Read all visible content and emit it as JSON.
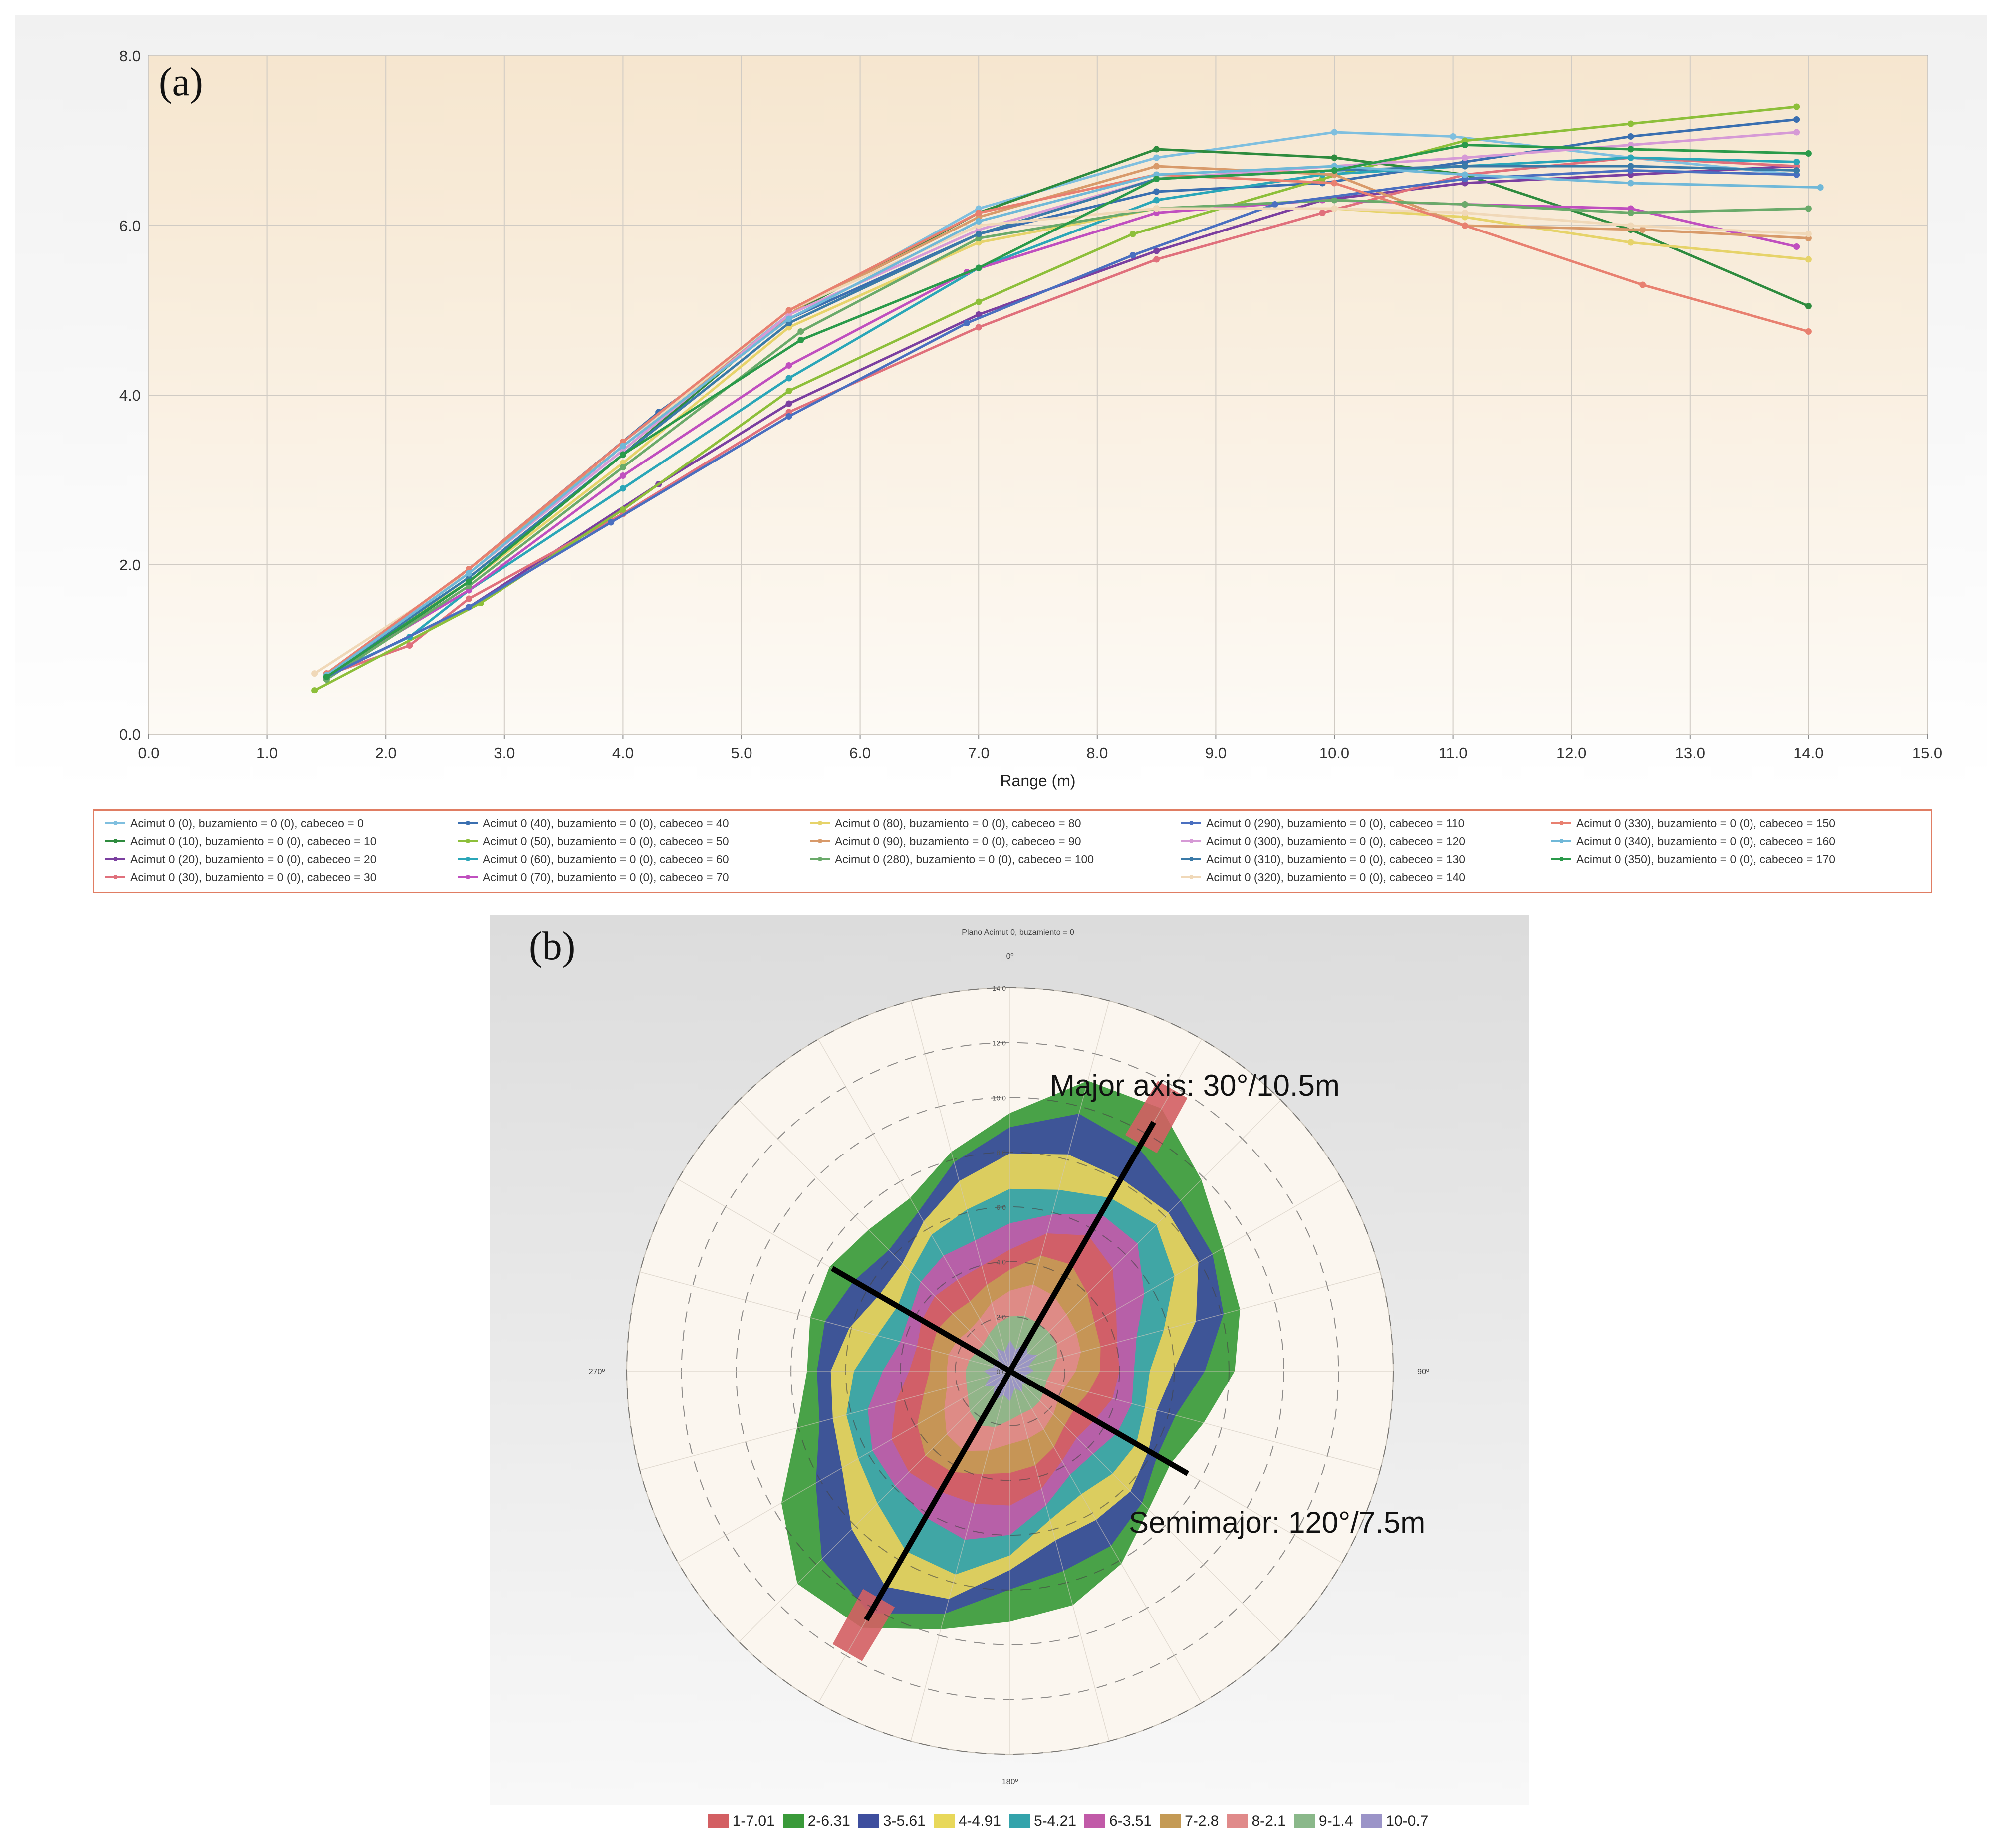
{
  "panel_a": {
    "label": "(a)",
    "chart_data": {
      "type": "line",
      "xlabel": "Range (m)",
      "ylabel": "",
      "xlim": [
        0,
        15
      ],
      "ylim": [
        0,
        8
      ],
      "x_ticks": [
        "0.0",
        "1.0",
        "2.0",
        "3.0",
        "4.0",
        "5.0",
        "6.0",
        "7.0",
        "8.0",
        "9.0",
        "10.0",
        "11.0",
        "12.0",
        "13.0",
        "14.0",
        "15.0"
      ],
      "y_ticks": [
        "0.0",
        "2.0",
        "4.0",
        "6.0",
        "8.0"
      ],
      "grid": true,
      "legend_position": "bottom",
      "series": [
        {
          "name": "Acimut 0 (0), buzamiento = 0 (0), cabeceo = 0",
          "color": "#7fbfdf",
          "x": [
            1.5,
            2.7,
            4.0,
            5.4,
            7.0,
            8.5,
            10.0,
            11.0,
            12.5,
            13.9
          ],
          "y": [
            0.72,
            1.95,
            3.45,
            4.95,
            6.2,
            6.8,
            7.1,
            7.05,
            6.8,
            6.6
          ]
        },
        {
          "name": "Acimut 0 (10), buzamiento = 0 (0), cabeceo = 10",
          "color": "#2e8b3e",
          "x": [
            1.5,
            2.7,
            4.0,
            5.4,
            7.0,
            8.5,
            10.0,
            11.1,
            12.5,
            14.0
          ],
          "y": [
            0.65,
            1.8,
            3.3,
            4.95,
            6.15,
            6.9,
            6.8,
            6.6,
            5.95,
            5.05
          ]
        },
        {
          "name": "Acimut 0 (20), buzamiento = 0 (0), cabeceo = 20",
          "color": "#7b3fa0",
          "x": [
            1.5,
            2.7,
            4.3,
            5.4,
            7.0,
            8.5,
            9.9,
            11.1,
            12.5,
            13.9
          ],
          "y": [
            0.68,
            1.5,
            2.95,
            3.9,
            4.95,
            5.7,
            6.3,
            6.5,
            6.6,
            6.7
          ]
        },
        {
          "name": "Acimut 0 (30), buzamiento = 0 (0), cabeceo = 30",
          "color": "#e0707c",
          "x": [
            1.5,
            2.2,
            2.7,
            4.0,
            5.4,
            7.0,
            8.5,
            9.9,
            11.1,
            12.5,
            13.9
          ],
          "y": [
            0.7,
            1.05,
            1.6,
            2.6,
            3.8,
            4.8,
            5.6,
            6.15,
            6.6,
            6.8,
            6.7
          ]
        },
        {
          "name": "Acimut 0 (40), buzamiento = 0 (0), cabeceo = 40",
          "color": "#3a6fb0",
          "x": [
            1.5,
            2.7,
            4.3,
            5.4,
            7.0,
            8.5,
            9.9,
            11.1,
            12.5,
            13.9
          ],
          "y": [
            0.68,
            1.95,
            3.8,
            4.9,
            5.9,
            6.4,
            6.5,
            6.75,
            7.05,
            7.25
          ]
        },
        {
          "name": "Acimut 0 (50), buzamiento = 0 (0), cabeceo = 50",
          "color": "#8dbf3a",
          "x": [
            1.4,
            2.8,
            4.0,
            5.4,
            7.0,
            8.3,
            9.9,
            11.1,
            12.5,
            13.9
          ],
          "y": [
            0.52,
            1.55,
            2.65,
            4.05,
            5.1,
            5.9,
            6.55,
            7.0,
            7.2,
            7.4
          ]
        },
        {
          "name": "Acimut 0 (60), buzamiento = 0 (0), cabeceo = 60",
          "color": "#2aa6b8",
          "x": [
            1.5,
            2.2,
            2.7,
            4.0,
            5.4,
            7.0,
            8.5,
            9.9,
            11.1,
            12.5,
            13.9
          ],
          "y": [
            0.7,
            1.15,
            1.7,
            2.9,
            4.2,
            5.5,
            6.3,
            6.6,
            6.7,
            6.8,
            6.75
          ]
        },
        {
          "name": "Acimut 0 (70), buzamiento = 0 (0), cabeceo = 70",
          "color": "#c04fbf",
          "x": [
            1.5,
            2.7,
            4.0,
            5.4,
            6.9,
            8.5,
            9.9,
            11.1,
            12.5,
            13.9
          ],
          "y": [
            0.7,
            1.7,
            3.05,
            4.35,
            5.45,
            6.15,
            6.3,
            6.25,
            6.2,
            5.75
          ]
        },
        {
          "name": "Acimut 0 (80), buzamiento = 0 (0), cabeceo = 80",
          "color": "#e6d36a",
          "x": [
            1.5,
            2.7,
            4.0,
            5.4,
            7.0,
            8.5,
            10.0,
            11.1,
            12.5,
            14.0
          ],
          "y": [
            0.72,
            1.8,
            3.2,
            4.8,
            5.8,
            6.2,
            6.2,
            6.1,
            5.8,
            5.6
          ]
        },
        {
          "name": "Acimut 0 (90), buzamiento = 0 (0), cabeceo = 90",
          "color": "#d89a6a",
          "x": [
            1.5,
            2.7,
            4.0,
            5.5,
            7.0,
            8.5,
            10.0,
            11.1,
            12.6,
            14.0
          ],
          "y": [
            0.7,
            1.95,
            3.4,
            5.05,
            6.1,
            6.7,
            6.6,
            6.0,
            5.95,
            5.85
          ]
        },
        {
          "name": "Acimut 0 (280), buzamiento = 0 (0), cabeceo = 100",
          "color": "#6aaa6a",
          "x": [
            1.5,
            2.7,
            4.0,
            5.5,
            7.0,
            8.5,
            10.0,
            11.1,
            12.5,
            14.0
          ],
          "y": [
            0.65,
            1.75,
            3.15,
            4.75,
            5.85,
            6.2,
            6.3,
            6.25,
            6.15,
            6.2
          ]
        },
        {
          "name": "Acimut 0 (290), buzamiento = 0 (0), cabeceo = 110",
          "color": "#4a6fc0",
          "x": [
            1.5,
            2.7,
            3.9,
            5.4,
            6.9,
            8.3,
            9.5,
            11.1,
            12.5,
            13.9
          ],
          "y": [
            0.68,
            1.5,
            2.5,
            3.75,
            4.85,
            5.65,
            6.25,
            6.55,
            6.65,
            6.6
          ]
        },
        {
          "name": "Acimut 0 (300), buzamiento = 0 (0), cabeceo = 120",
          "color": "#d69ad6",
          "x": [
            1.5,
            2.7,
            4.0,
            5.4,
            7.0,
            8.5,
            10.0,
            11.1,
            12.5,
            13.9
          ],
          "y": [
            0.72,
            1.9,
            3.35,
            4.95,
            5.95,
            6.55,
            6.7,
            6.8,
            6.95,
            7.1
          ]
        },
        {
          "name": "Acimut 0 (310), buzamiento = 0 (0), cabeceo = 130",
          "color": "#3a7aa8",
          "x": [
            1.5,
            2.7,
            4.0,
            5.4,
            7.0,
            8.5,
            10.0,
            11.1,
            12.5,
            13.9
          ],
          "y": [
            0.7,
            1.85,
            3.3,
            4.85,
            5.9,
            6.55,
            6.65,
            6.7,
            6.7,
            6.65
          ]
        },
        {
          "name": "Acimut 0 (320), buzamiento = 0 (0), cabeceo = 140",
          "color": "#f0d8b8",
          "x": [
            1.4,
            2.7,
            4.0,
            5.4,
            7.0,
            8.5,
            10.0,
            11.1,
            12.5,
            14.0
          ],
          "y": [
            0.72,
            1.9,
            3.4,
            5.0,
            6.0,
            6.2,
            6.2,
            6.15,
            6.0,
            5.9
          ]
        },
        {
          "name": "Acimut 0 (330), buzamiento = 0 (0), cabeceo = 150",
          "color": "#e88070",
          "x": [
            1.5,
            2.7,
            4.0,
            5.4,
            7.0,
            8.5,
            10.0,
            11.1,
            12.6,
            14.0
          ],
          "y": [
            0.72,
            1.95,
            3.45,
            5.0,
            6.15,
            6.6,
            6.5,
            6.0,
            5.3,
            4.75
          ]
        },
        {
          "name": "Acimut 0 (340), buzamiento = 0 (0), cabeceo = 160",
          "color": "#70b8d8",
          "x": [
            1.5,
            2.7,
            4.0,
            5.4,
            7.0,
            8.5,
            10.0,
            11.1,
            12.5,
            14.1
          ],
          "y": [
            0.7,
            1.9,
            3.4,
            4.9,
            6.05,
            6.6,
            6.7,
            6.6,
            6.5,
            6.45
          ]
        },
        {
          "name": "Acimut 0 (350), buzamiento = 0 (0), cabeceo = 170",
          "color": "#2a9a4a",
          "x": [
            1.5,
            2.7,
            4.0,
            5.5,
            7.0,
            8.5,
            10.0,
            11.1,
            12.5,
            14.0
          ],
          "y": [
            0.68,
            1.8,
            3.3,
            4.65,
            5.5,
            6.55,
            6.65,
            6.95,
            6.9,
            6.85
          ]
        }
      ]
    }
  },
  "panel_b": {
    "label": "(b)",
    "title": "Plano Acimut 0, buzamiento = 0",
    "direction_labels": {
      "n": "0º",
      "e": "90º",
      "s": "180º",
      "w": "270º"
    },
    "radial_ticks": [
      "0.0",
      "2.0",
      "4.0",
      "6.0",
      "8.0",
      "10.0",
      "12.0",
      "14.0"
    ],
    "annotations": {
      "major_axis": "Major  axis: 30°/10.5m",
      "semimajor": "Semimajor: 120°/7.5m"
    },
    "chart_data": {
      "type": "heatmap",
      "title": "Plano Acimut 0, buzamiento = 0",
      "radial_range": [
        0,
        14
      ],
      "major_axis": {
        "azimuth_deg": 30,
        "range_m": 10.5
      },
      "semimajor_axis": {
        "azimuth_deg": 120,
        "range_m": 7.5
      },
      "bands": [
        {
          "label": "1-7.01",
          "color": "#d35f63"
        },
        {
          "label": "2-6.31",
          "color": "#3a9a3a"
        },
        {
          "label": "3-5.61",
          "color": "#3e4e9e"
        },
        {
          "label": "4-4.91",
          "color": "#e8d85a"
        },
        {
          "label": "5-4.21",
          "color": "#33a3ab"
        },
        {
          "label": "6-3.51",
          "color": "#c15aa8"
        },
        {
          "label": "7-2.8",
          "color": "#c49a55"
        },
        {
          "label": "8-2.1",
          "color": "#e08a8a"
        },
        {
          "label": "9-1.4",
          "color": "#8ab88a"
        },
        {
          "label": "10-0.7",
          "color": "#9b94c8"
        }
      ]
    }
  }
}
